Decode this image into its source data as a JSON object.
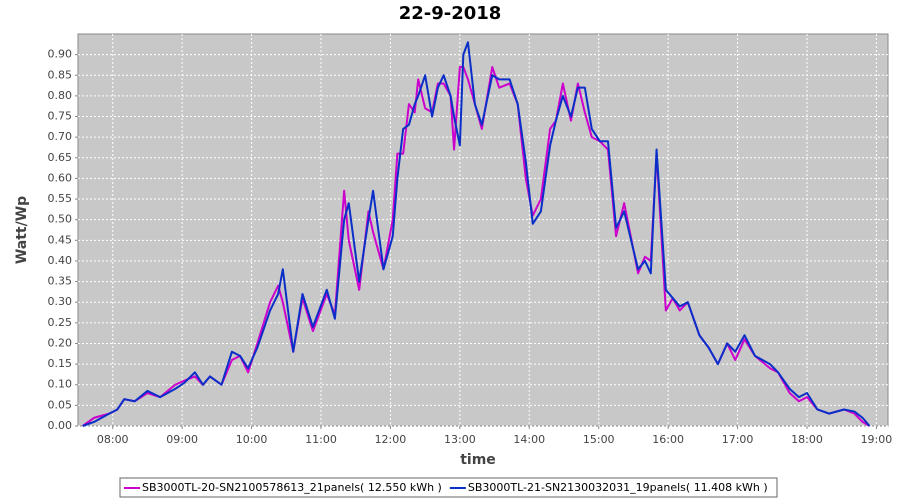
{
  "chart_data": {
    "type": "line",
    "title": "22-9-2018",
    "x_label": "time",
    "y_label": "Watt/Wp",
    "x": [
      454,
      464,
      477,
      484,
      490,
      499,
      510,
      521,
      534,
      542,
      551,
      558,
      564,
      574,
      583,
      590,
      597,
      605,
      616,
      623,
      627,
      636,
      644,
      653,
      665,
      672,
      680,
      684,
      693,
      701,
      705,
      714,
      722,
      726,
      731,
      736,
      741,
      744,
      750,
      756,
      761,
      766,
      772,
      775,
      780,
      783,
      787,
      793,
      799,
      808,
      814,
      823,
      830,
      837,
      843,
      850,
      858,
      863,
      869,
      876,
      882,
      888,
      894,
      901,
      908,
      915,
      922,
      934,
      940,
      945,
      950,
      958,
      964,
      970,
      977,
      987,
      995,
      1003,
      1011,
      1018,
      1026,
      1035,
      1048,
      1055,
      1065,
      1073,
      1080,
      1089,
      1099,
      1112,
      1121,
      1128,
      1134
    ],
    "series": [
      {
        "name": "SB3000TL-20-SN2100578613_21panels( 12.550 kWh )",
        "color": "#cc00cc",
        "values": [
          0,
          0.02,
          0.03,
          0.04,
          0.065,
          0.06,
          0.08,
          0.07,
          0.1,
          0.11,
          0.12,
          0.1,
          0.12,
          0.1,
          0.16,
          0.17,
          0.13,
          0.2,
          0.3,
          0.34,
          0.3,
          0.18,
          0.31,
          0.23,
          0.32,
          0.27,
          0.57,
          0.45,
          0.33,
          0.52,
          0.47,
          0.38,
          0.5,
          0.66,
          0.66,
          0.78,
          0.76,
          0.84,
          0.77,
          0.76,
          0.83,
          0.83,
          0.8,
          0.67,
          0.87,
          0.87,
          0.84,
          0.78,
          0.72,
          0.87,
          0.82,
          0.83,
          0.78,
          0.6,
          0.51,
          0.55,
          0.72,
          0.74,
          0.83,
          0.74,
          0.83,
          0.76,
          0.7,
          0.69,
          0.67,
          0.46,
          0.54,
          0.37,
          0.41,
          0.4,
          0.66,
          0.28,
          0.31,
          0.28,
          0.3,
          0.22,
          0.19,
          0.15,
          0.2,
          0.16,
          0.21,
          0.17,
          0.14,
          0.13,
          0.08,
          0.06,
          0.07,
          0.04,
          0.03,
          0.04,
          0.03,
          0.01,
          0
        ]
      },
      {
        "name": "SB3000TL-21-SN2130032031_19panels( 11.408 kWh )",
        "color": "#0a2fc8",
        "values": [
          0,
          0.01,
          0.03,
          0.04,
          0.065,
          0.06,
          0.085,
          0.07,
          0.09,
          0.105,
          0.13,
          0.1,
          0.12,
          0.1,
          0.18,
          0.17,
          0.14,
          0.19,
          0.28,
          0.32,
          0.38,
          0.18,
          0.32,
          0.24,
          0.33,
          0.26,
          0.5,
          0.54,
          0.35,
          0.5,
          0.57,
          0.38,
          0.46,
          0.6,
          0.72,
          0.73,
          0.78,
          0.8,
          0.85,
          0.75,
          0.82,
          0.85,
          0.8,
          0.75,
          0.68,
          0.9,
          0.93,
          0.78,
          0.73,
          0.85,
          0.84,
          0.84,
          0.78,
          0.64,
          0.49,
          0.52,
          0.68,
          0.74,
          0.8,
          0.75,
          0.82,
          0.82,
          0.72,
          0.69,
          0.69,
          0.48,
          0.52,
          0.38,
          0.4,
          0.37,
          0.67,
          0.33,
          0.31,
          0.29,
          0.3,
          0.22,
          0.19,
          0.15,
          0.2,
          0.18,
          0.22,
          0.17,
          0.15,
          0.13,
          0.09,
          0.07,
          0.08,
          0.04,
          0.03,
          0.04,
          0.035,
          0.02,
          0
        ]
      }
    ],
    "xlim": [
      450,
      1150
    ],
    "xticks": [
      {
        "value": 480,
        "label": "08:00"
      },
      {
        "value": 540,
        "label": "09:00"
      },
      {
        "value": 600,
        "label": "10:00"
      },
      {
        "value": 660,
        "label": "11:00"
      },
      {
        "value": 720,
        "label": "12:00"
      },
      {
        "value": 780,
        "label": "13:00"
      },
      {
        "value": 840,
        "label": "14:00"
      },
      {
        "value": 900,
        "label": "15:00"
      },
      {
        "value": 960,
        "label": "16:00"
      },
      {
        "value": 1020,
        "label": "17:00"
      },
      {
        "value": 1080,
        "label": "18:00"
      },
      {
        "value": 1140,
        "label": "19:00"
      }
    ],
    "ylim": [
      0,
      0.95
    ],
    "yticks": [
      {
        "value": 0,
        "label": "0.00"
      },
      {
        "value": 0.05,
        "label": "0.05"
      },
      {
        "value": 0.1,
        "label": "0.10"
      },
      {
        "value": 0.15,
        "label": "0.15"
      },
      {
        "value": 0.2,
        "label": "0.20"
      },
      {
        "value": 0.25,
        "label": "0.25"
      },
      {
        "value": 0.3,
        "label": "0.30"
      },
      {
        "value": 0.35,
        "label": "0.35"
      },
      {
        "value": 0.4,
        "label": "0.40"
      },
      {
        "value": 0.45,
        "label": "0.45"
      },
      {
        "value": 0.5,
        "label": "0.50"
      },
      {
        "value": 0.55,
        "label": "0.55"
      },
      {
        "value": 0.6,
        "label": "0.60"
      },
      {
        "value": 0.65,
        "label": "0.65"
      },
      {
        "value": 0.7,
        "label": "0.70"
      },
      {
        "value": 0.75,
        "label": "0.75"
      },
      {
        "value": 0.8,
        "label": "0.80"
      },
      {
        "value": 0.85,
        "label": "0.85"
      },
      {
        "value": 0.9,
        "label": "0.90"
      }
    ],
    "grid": true,
    "legend": "bottom"
  }
}
